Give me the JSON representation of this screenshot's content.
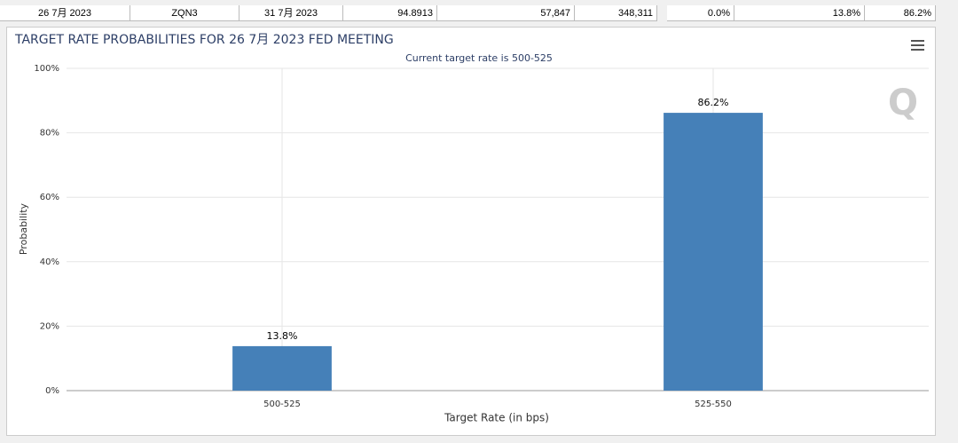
{
  "table": {
    "rows": [
      [
        "26 7月 2023",
        "ZQN3",
        "31 7月 2023",
        "94.8913",
        "57,847",
        "348,311",
        "0.0%",
        "13.8%",
        "86.2%"
      ]
    ]
  },
  "chart_data": {
    "type": "bar",
    "title": "TARGET RATE PROBABILITIES FOR 26 7月 2023 FED MEETING",
    "subtitle": "Current target rate is 500-525",
    "x_label": "Target Rate (in bps)",
    "y_label": "Probability",
    "categories": [
      "500-525",
      "525-550"
    ],
    "values": [
      13.8,
      86.2
    ],
    "value_labels": [
      "13.8%",
      "86.2%"
    ],
    "color": "#4580b8",
    "ylim": [
      0,
      100
    ],
    "yticks": [
      {
        "value": 0,
        "label": "0%"
      },
      {
        "value": 20,
        "label": "20%"
      },
      {
        "value": 40,
        "label": "40%"
      },
      {
        "value": 60,
        "label": "60%"
      },
      {
        "value": 80,
        "label": "80%"
      },
      {
        "value": 100,
        "label": "100%"
      }
    ],
    "grid": true
  }
}
